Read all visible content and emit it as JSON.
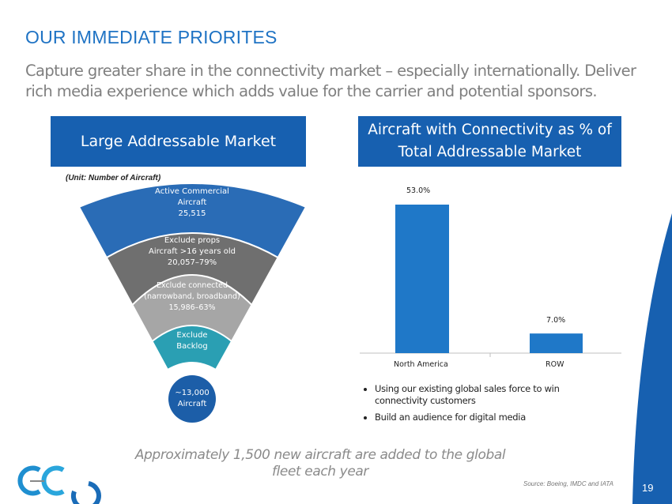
{
  "title": "OUR IMMEDIATE PRIORITES",
  "subtitle": "Capture greater share in the connectivity market – especially internationally. Deliver rich media experience which adds value for the carrier and potential sponsors.",
  "left_header": "Large Addressable Market",
  "right_header": "Aircraft with Connectivity as % of Total Addressable Market",
  "funnel": {
    "unit": "(Unit: Number of Aircraft)",
    "layers": [
      {
        "l1": "Active Commercial",
        "l2": "Aircraft",
        "l3": "25,515",
        "color": "#2a6cb6"
      },
      {
        "l1": "Exclude props",
        "l2": "Aircraft >16 years old",
        "l3": "20,057–79%",
        "color": "#6f6f6f"
      },
      {
        "l1": "Exclude connected",
        "l2": "(narrowband, broadband)",
        "l3": "15,986–63%",
        "color": "#a6a6a6"
      },
      {
        "l1": "Exclude",
        "l2": "Backlog",
        "color": "#2a9fb3"
      }
    ],
    "result": {
      "l1": "~13,000",
      "l2": "Aircraft",
      "color": "#1c5ea8"
    }
  },
  "chart_data": {
    "type": "bar",
    "categories": [
      "North America",
      "ROW"
    ],
    "values": [
      53.0,
      7.0
    ],
    "labels": [
      "53.0%",
      "7.0%"
    ],
    "ylim": [
      0,
      56
    ],
    "color": "#1f78c8"
  },
  "bullets": [
    "Using our existing global sales force to win connectivity customers",
    "Build an audience for digital media"
  ],
  "footnote": "Approximately 1,500 new aircraft are added to the global fleet each year",
  "source": "Source: Boeing, IMDC and IATA",
  "page_number": "19",
  "logo_text": "GEE"
}
